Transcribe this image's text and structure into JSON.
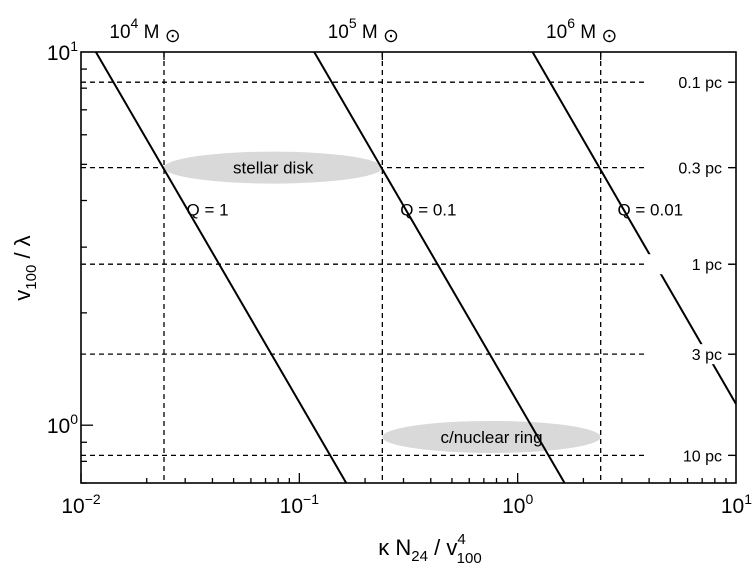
{
  "chart_data": {
    "type": "line",
    "xscale": "log",
    "yscale": "log",
    "xlim": [
      0.01,
      10
    ],
    "ylim": [
      0.7,
      10
    ],
    "xlabel": {
      "main": "κ N",
      "sub1": "24",
      "mid": " / v",
      "sup": "4",
      "sub2": "100"
    },
    "ylabel": {
      "main": "v",
      "sub": "100",
      "rest": " / λ"
    },
    "x_ticks": [
      {
        "value": 0.01,
        "base": "10",
        "exp": "−2"
      },
      {
        "value": 0.1,
        "base": "10",
        "exp": "−1"
      },
      {
        "value": 1,
        "base": "10",
        "exp": "0"
      },
      {
        "value": 10,
        "base": "10",
        "exp": "1"
      }
    ],
    "y_ticks": [
      {
        "value": 1,
        "base": "10",
        "exp": "0"
      },
      {
        "value": 10,
        "base": "10",
        "exp": "1"
      }
    ],
    "top_axis_ticks": [
      {
        "x": 0.024,
        "base": "10",
        "exp": "4",
        "unit": "M",
        "symbol": "⊙"
      },
      {
        "x": 0.24,
        "base": "10",
        "exp": "5",
        "unit": "M",
        "symbol": "⊙"
      },
      {
        "x": 2.4,
        "base": "10",
        "exp": "6",
        "unit": "M",
        "symbol": "⊙"
      }
    ],
    "right_axis_ticks": [
      {
        "y": 8.3,
        "label": "0.1 pc"
      },
      {
        "y": 4.9,
        "label": "0.3 pc"
      },
      {
        "y": 2.7,
        "label": "1 pc"
      },
      {
        "y": 1.55,
        "label": "3 pc"
      },
      {
        "y": 0.83,
        "label": "10 pc"
      }
    ],
    "series": [
      {
        "name": "Q = 1",
        "x": [
          0.0117,
          0.164
        ],
        "y": [
          10,
          0.7
        ]
      },
      {
        "name": "Q = 0.1",
        "x": [
          0.117,
          1.64
        ],
        "y": [
          10,
          0.7
        ]
      },
      {
        "name": "Q = 0.01",
        "x": [
          1.17,
          10
        ],
        "y": [
          10,
          1.14
        ]
      }
    ],
    "series_labels": [
      {
        "text": "Q = 1",
        "x": 0.038,
        "y": 3.65
      },
      {
        "text": "Q = 0.1",
        "x": 0.39,
        "y": 3.65
      },
      {
        "text": "Q = 0.01",
        "x": 4.05,
        "y": 3.65
      }
    ],
    "regions": [
      {
        "text": "stellar disk",
        "x_range": [
          0.024,
          0.24
        ],
        "y": 4.9
      },
      {
        "text": "c/nuclear ring",
        "x_range": [
          0.24,
          2.4
        ],
        "y": 0.93
      }
    ]
  }
}
